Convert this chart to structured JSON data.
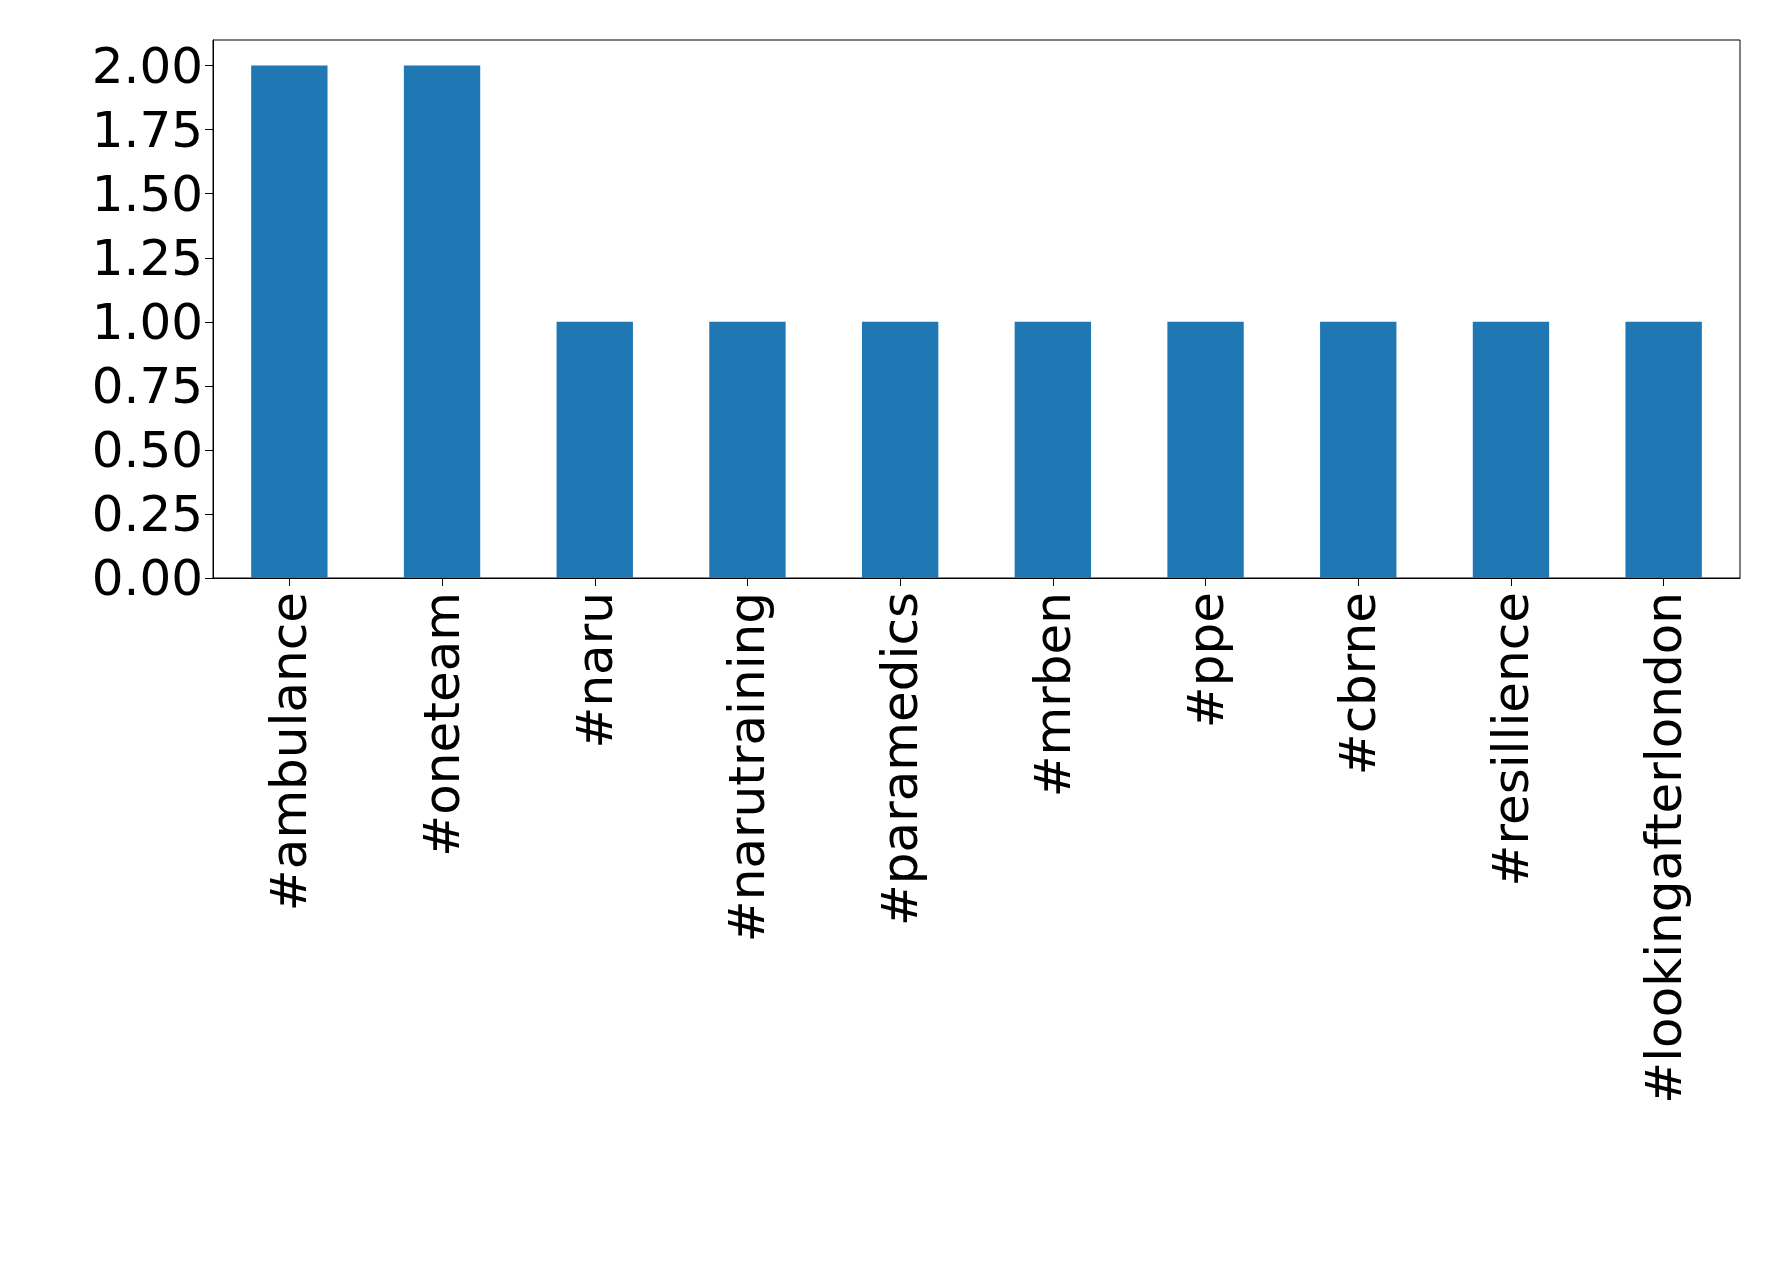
{
  "chart_data": {
    "type": "bar",
    "categories": [
      "#ambulance",
      "#oneteam",
      "#naru",
      "#narutraining",
      "#paramedics",
      "#mrben",
      "#ppe",
      "#cbrne",
      "#resillience",
      "#lookingafterlondon"
    ],
    "values": [
      2,
      2,
      1,
      1,
      1,
      1,
      1,
      1,
      1,
      1
    ],
    "color": "#1f77b4",
    "ylim": [
      0,
      2.1
    ],
    "yticks": [
      {
        "value": 0,
        "label": "0.00"
      },
      {
        "value": 0.25,
        "label": "0.25"
      },
      {
        "value": 0.5,
        "label": "0.50"
      },
      {
        "value": 0.75,
        "label": "0.75"
      },
      {
        "value": 1,
        "label": "1.00"
      },
      {
        "value": 1.25,
        "label": "1.25"
      },
      {
        "value": 1.5,
        "label": "1.50"
      },
      {
        "value": 1.75,
        "label": "1.75"
      },
      {
        "value": 2,
        "label": "2.00"
      }
    ],
    "grid": false
  }
}
